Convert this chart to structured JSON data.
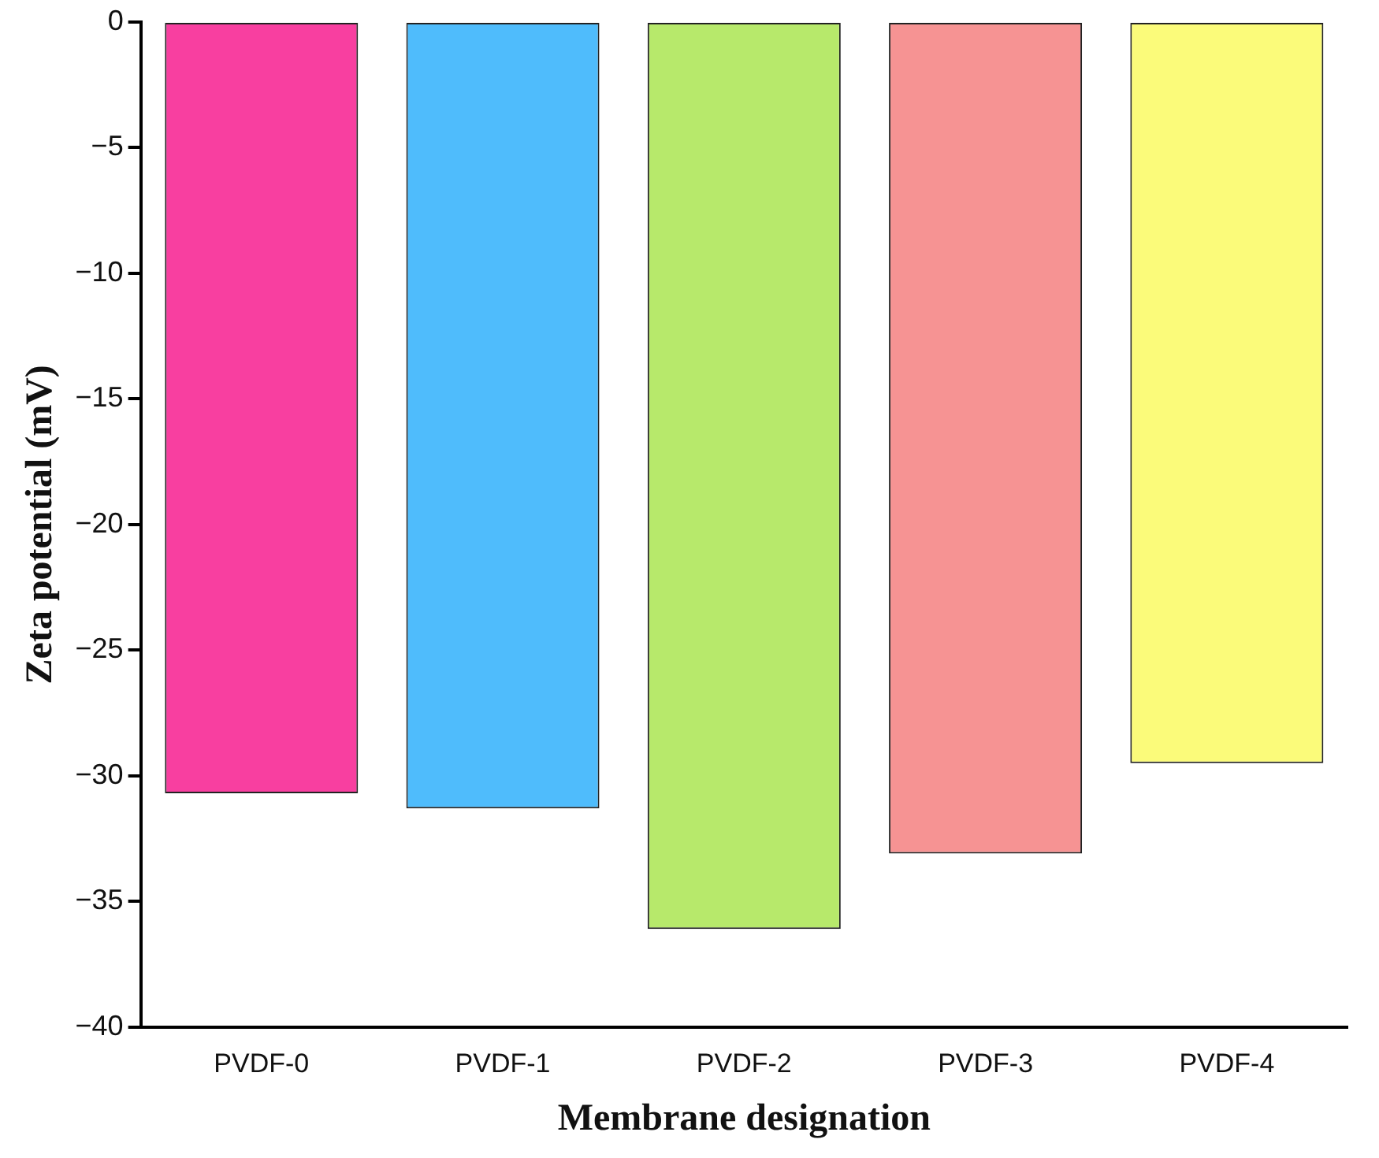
{
  "chart_data": {
    "type": "bar",
    "xlabel": "Membrane designation",
    "ylabel": "Zeta potential (mV)",
    "categories": [
      "PVDF-0",
      "PVDF-1",
      "PVDF-2",
      "PVDF-3",
      "PVDF-4"
    ],
    "values": [
      -30.7,
      -31.3,
      -36.1,
      -33.1,
      -29.5
    ],
    "colors": [
      "#f83fa0",
      "#4fbcfc",
      "#b7e96b",
      "#f69393",
      "#fbfb7a"
    ],
    "ylim": [
      -40,
      0
    ],
    "yticks": [
      {
        "value": 0,
        "label": "0"
      },
      {
        "value": -5,
        "label": "−5"
      },
      {
        "value": -10,
        "label": "−10"
      },
      {
        "value": -15,
        "label": "−15"
      },
      {
        "value": -20,
        "label": "−20"
      },
      {
        "value": -25,
        "label": "−25"
      },
      {
        "value": -30,
        "label": "−30"
      },
      {
        "value": -35,
        "label": "−35"
      },
      {
        "value": -40,
        "label": "−40"
      }
    ],
    "grid": false,
    "legend": false
  }
}
